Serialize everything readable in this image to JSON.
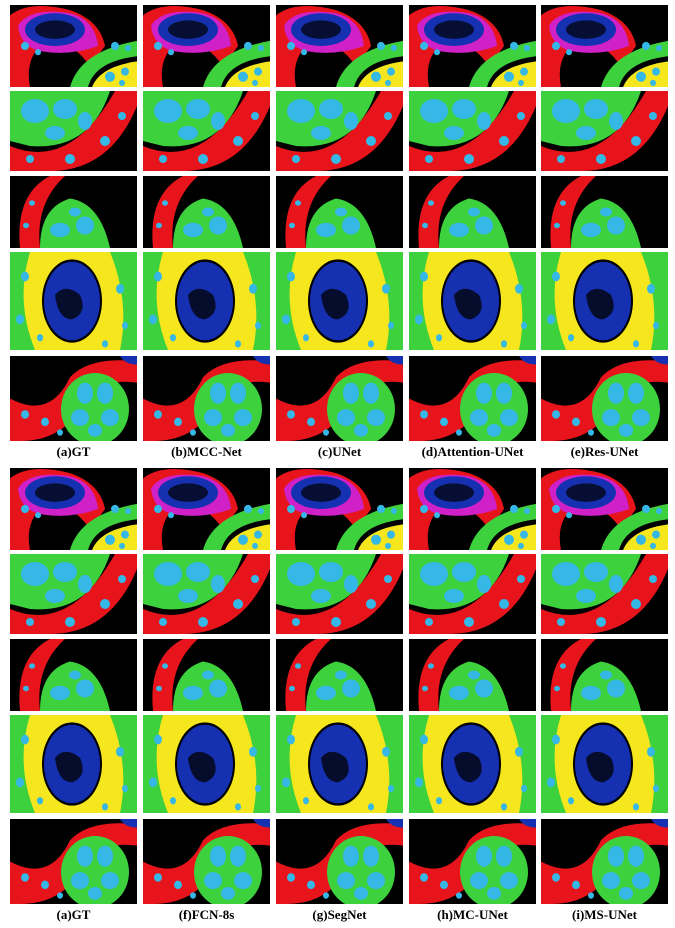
{
  "panels": [
    {
      "labels": [
        "(a)GT",
        "(b)MCC-Net",
        "(c)UNet",
        "(d)Attention-UNet",
        "(e)Res-UNet"
      ]
    },
    {
      "labels": [
        "(a)GT",
        "(f)FCN-8s",
        "(g)SegNet",
        "(h)MC-UNet",
        "(i)MS-UNet"
      ]
    }
  ]
}
